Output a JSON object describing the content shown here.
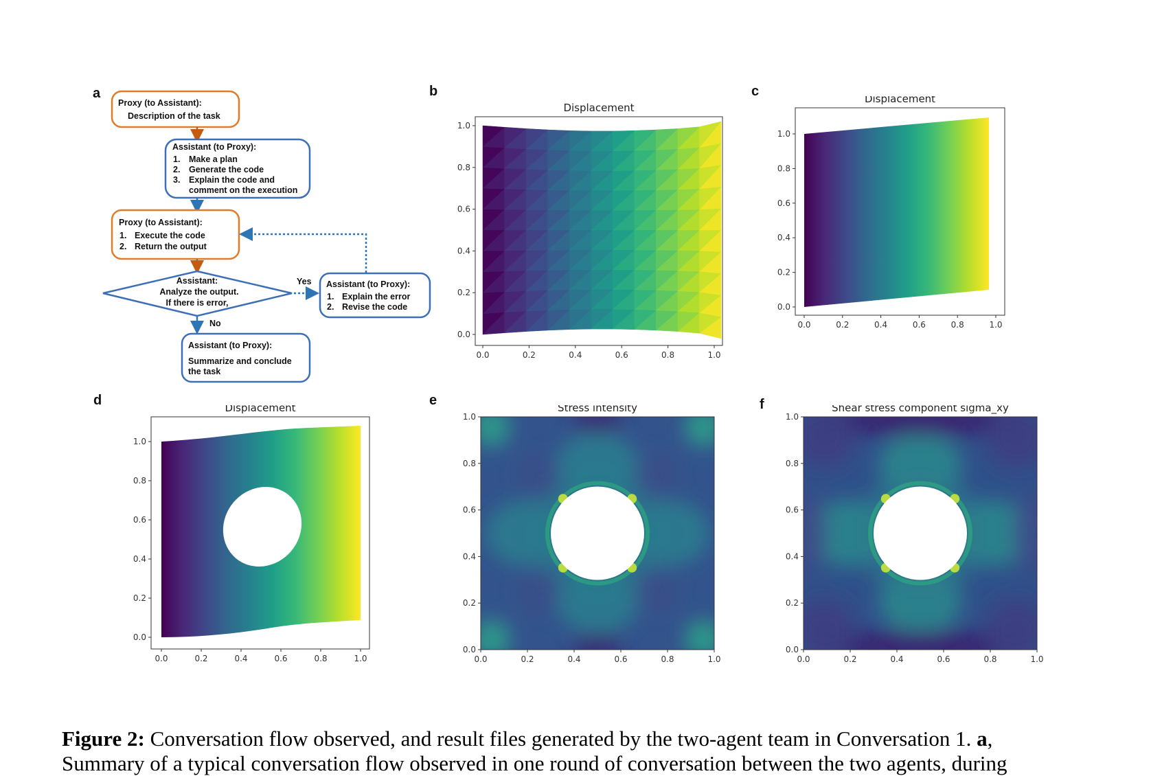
{
  "panels": {
    "a": "a",
    "b": "b",
    "c": "c",
    "d": "d",
    "e": "e",
    "f": "f"
  },
  "flow": {
    "box1": {
      "title": "Proxy (to Assistant):",
      "line1": "Description of the task"
    },
    "box2": {
      "title": "Assistant (to Proxy):",
      "items": [
        "1.",
        "Make a plan",
        "2.",
        "Generate the code",
        "3.",
        "Explain the code and",
        "comment on the execution"
      ]
    },
    "box3": {
      "title": "Proxy (to Assistant):",
      "items": [
        "1.",
        "Execute the code",
        "2.",
        "Return the output"
      ]
    },
    "diamond": {
      "l1": "Assistant:",
      "l2": "Analyze the output.",
      "l3": "If there is error,"
    },
    "yes": "Yes",
    "no": "No",
    "box4": {
      "title": "Assistant (to Proxy):",
      "items": [
        "1.",
        "Explain the error",
        "2.",
        "Revise the code"
      ]
    },
    "box5": {
      "title": "Assistant (to Proxy):",
      "l1": "Summarize and conclude",
      "l2": "the task"
    }
  },
  "chart_data": [
    {
      "id": "b",
      "type": "heatmap",
      "title": "Displacement",
      "xlim": [
        0,
        1
      ],
      "ylim": [
        0,
        1
      ],
      "xticks": [
        "0.0",
        "0.2",
        "0.4",
        "0.6",
        "0.8",
        "1.0"
      ],
      "yticks": [
        "0.0",
        "0.2",
        "0.4",
        "0.6",
        "0.8",
        "1.0"
      ],
      "colormap": "viridis",
      "description_of_field": "horizontal gradient, coarse triangular mesh"
    },
    {
      "id": "c",
      "type": "heatmap",
      "title": "Displacement",
      "xlim": [
        0,
        1
      ],
      "ylim": [
        0,
        1
      ],
      "xticks": [
        "0.0",
        "0.2",
        "0.4",
        "0.6",
        "0.8",
        "1.0"
      ],
      "yticks": [
        "0.0",
        "0.2",
        "0.4",
        "0.6",
        "0.8",
        "1.0"
      ],
      "colormap": "viridis"
    },
    {
      "id": "d",
      "type": "heatmap",
      "title": "Displacement",
      "xlim": [
        0,
        1
      ],
      "ylim": [
        0,
        1
      ],
      "xticks": [
        "0.0",
        "0.2",
        "0.4",
        "0.6",
        "0.8",
        "1.0"
      ],
      "yticks": [
        "0.0",
        "0.2",
        "0.4",
        "0.6",
        "0.8",
        "1.0"
      ],
      "colormap": "viridis"
    },
    {
      "id": "e",
      "type": "heatmap",
      "title": "Stress intensity",
      "xlim": [
        0,
        1
      ],
      "ylim": [
        0,
        1
      ],
      "xticks": [
        "0.0",
        "0.2",
        "0.4",
        "0.6",
        "0.8",
        "1.0"
      ],
      "yticks": [
        "0.0",
        "0.2",
        "0.4",
        "0.6",
        "0.8",
        "1.0"
      ],
      "colormap": "viridis",
      "hole_center": [
        0.5,
        0.5
      ],
      "hole_radius": 0.2
    },
    {
      "id": "f",
      "type": "heatmap",
      "title": "Shear stress component sigma_xy",
      "xlim": [
        0,
        1
      ],
      "ylim": [
        0,
        1
      ],
      "xticks": [
        "0.0",
        "0.2",
        "0.4",
        "0.6",
        "0.8",
        "1.0"
      ],
      "yticks": [
        "0.0",
        "0.2",
        "0.4",
        "0.6",
        "0.8",
        "1.0"
      ],
      "colormap": "viridis",
      "hole_center": [
        0.5,
        0.5
      ],
      "hole_radius": 0.2
    }
  ],
  "caption": {
    "label": "Figure 2:",
    "line1": " Conversation flow observed, and result files generated by the two-agent team in Conversation 1. ",
    "bold_a": "a",
    "line1_end": ",",
    "line2": "Summary of a typical conversation flow observed in one round of conversation between the two agents, during"
  },
  "colors": {
    "orange": "#e07b28",
    "blue": "#3d6fb8",
    "arrow_orange": "#c55a11",
    "arrow_blue": "#2e75b6"
  }
}
